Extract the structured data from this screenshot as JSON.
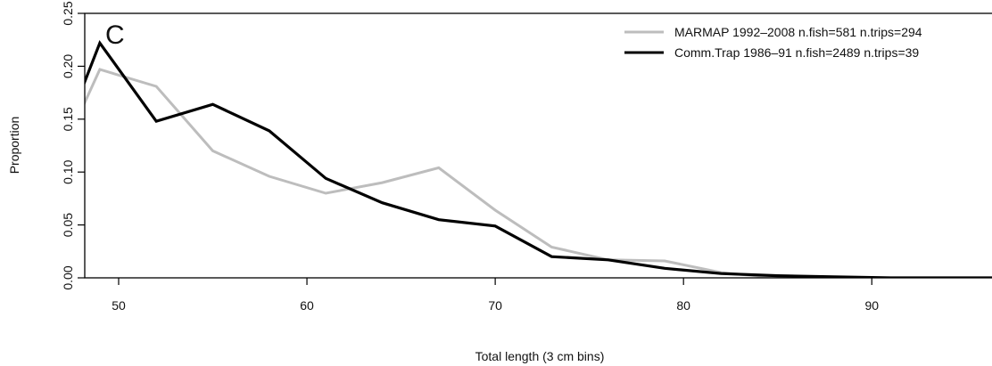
{
  "chart_data": {
    "type": "line",
    "panel_label": "C",
    "xlabel": "Total length (3 cm bins)",
    "ylabel": "Proportion",
    "xlim": [
      48.2,
      97
    ],
    "ylim": [
      0,
      0.25
    ],
    "x_ticks": [
      50,
      60,
      70,
      80,
      90
    ],
    "y_ticks": [
      0.0,
      0.05,
      0.1,
      0.15,
      0.2,
      0.25
    ],
    "y_tick_labels": [
      "0.00",
      "0.05",
      "0.10",
      "0.15",
      "0.20",
      "0.25"
    ],
    "x": [
      46,
      49,
      52,
      55,
      58,
      61,
      64,
      67,
      70,
      73,
      76,
      79,
      82,
      85,
      88,
      91,
      94,
      97,
      100
    ],
    "legend_position": "top-right",
    "series": [
      {
        "name": "MARMAP 1992–2008 n.fish=581 n.trips=294",
        "color": "#bdbdbd",
        "values": [
          0.08,
          0.197,
          0.181,
          0.12,
          0.096,
          0.08,
          0.09,
          0.104,
          0.064,
          0.029,
          0.017,
          0.016,
          0.005,
          0.0,
          0.0,
          0.0,
          0.0,
          0.0,
          0.0
        ]
      },
      {
        "name": "Comm.Trap 1986–91 n.fish=2489 n.trips=39",
        "color": "#000000",
        "values": [
          0.085,
          0.222,
          0.148,
          0.164,
          0.139,
          0.094,
          0.071,
          0.055,
          0.049,
          0.02,
          0.017,
          0.009,
          0.004,
          0.002,
          0.001,
          0.0,
          0.0,
          0.0,
          0.0
        ]
      }
    ]
  }
}
